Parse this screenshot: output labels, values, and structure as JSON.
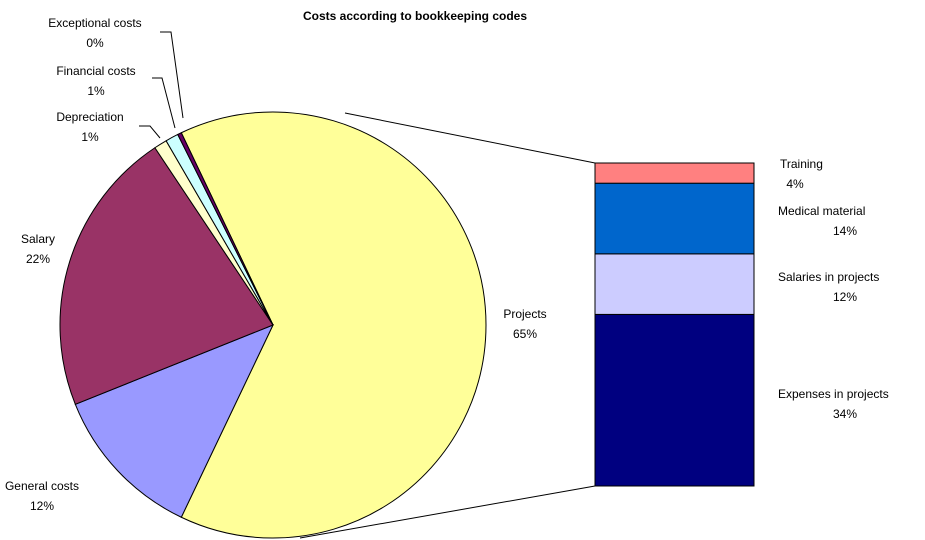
{
  "chart_data": {
    "type": "pie",
    "title": "Costs according to bookkeeping codes",
    "categories": [
      "Projects",
      "General costs",
      "Salary",
      "Depreciation",
      "Financial costs",
      "Exceptional costs"
    ],
    "values": [
      65,
      12,
      22,
      1,
      1,
      0.3
    ],
    "value_labels": [
      "65%",
      "12%",
      "22%",
      "1%",
      "1%",
      "0%"
    ],
    "colors": [
      "#ffff99",
      "#9999ff",
      "#993366",
      "#ffffcc",
      "#ccffff",
      "#660066"
    ],
    "breakdown": {
      "categories": [
        "Training",
        "Medical material",
        "Salaries in projects",
        "Expenses in projects"
      ],
      "values": [
        4,
        14,
        12,
        34
      ],
      "value_labels": [
        "4%",
        "14%",
        "12%",
        "34%"
      ],
      "colors": [
        "#ff8080",
        "#0066cc",
        "#ccccff",
        "#000080"
      ]
    }
  }
}
